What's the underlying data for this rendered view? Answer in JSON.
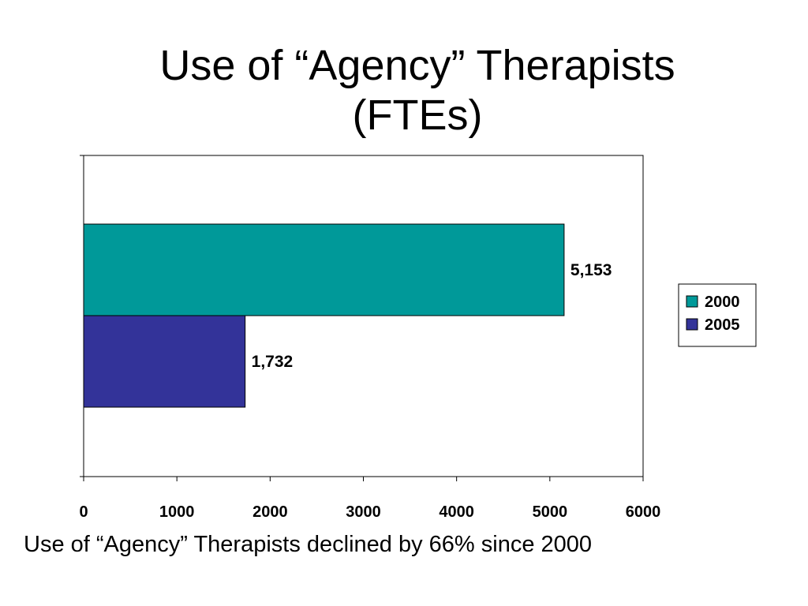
{
  "slide": {
    "title_line1": "Use of “Agency” Therapists",
    "title_line2": "(FTEs)",
    "caption": "Use of “Agency” Therapists declined by 66% since 2000"
  },
  "chart_data": {
    "type": "bar",
    "orientation": "horizontal",
    "title": "Use of “Agency” Therapists (FTEs)",
    "xlabel": "",
    "ylabel": "",
    "xlim": [
      0,
      6000
    ],
    "xticks": [
      0,
      1000,
      2000,
      3000,
      4000,
      5000,
      6000
    ],
    "grid": false,
    "legend_position": "right",
    "series": [
      {
        "name": "2000",
        "value": 5153,
        "label": "5,153",
        "color": "#009999"
      },
      {
        "name": "2005",
        "value": 1732,
        "label": "1,732",
        "color": "#333399"
      }
    ]
  }
}
